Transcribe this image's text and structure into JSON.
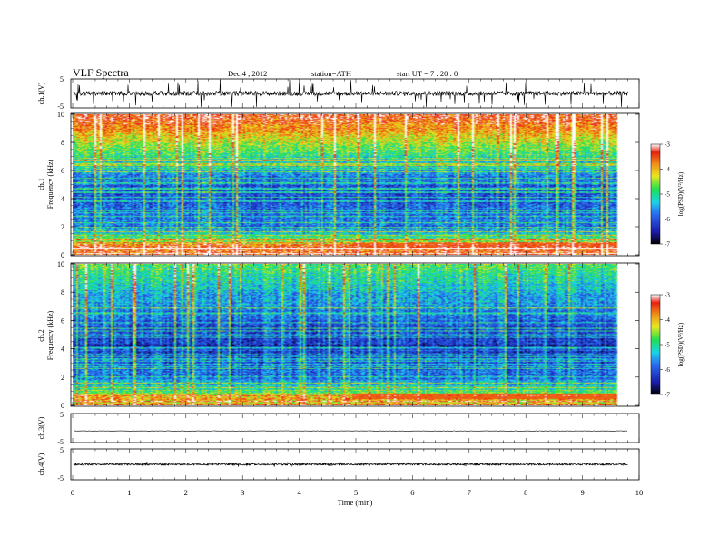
{
  "header": {
    "title": "VLF  Spectra",
    "date": "Dec.4  , 2012",
    "station": "station=ATH",
    "start_ut": "start  UT  =    7  : 20 : 0"
  },
  "colors": {
    "colormap": [
      "#000000",
      "#1a1aa8",
      "#2a6cf0",
      "#18d4e8",
      "#22e050",
      "#e8e820",
      "#f09018",
      "#e82010",
      "#ffffff"
    ],
    "waveform": "#000000",
    "background": "#ffffff"
  },
  "chart_data": [
    {
      "type": "line",
      "panel": "ch1-waveform",
      "ylabel": "ch.1(V)",
      "ytick_labels": [
        "5",
        "-5"
      ],
      "ylim": [
        -5,
        5
      ],
      "xlim": [
        0,
        10
      ],
      "baseline_v": 0,
      "note_values": "noise waveform centered near 0 V"
    },
    {
      "type": "heatmap",
      "panel": "ch1-spectrogram",
      "ylabel_lines": [
        "ch.1",
        "Frequency  (kHz)"
      ],
      "ytick_labels": [
        "0",
        "2",
        "4",
        "6",
        "8",
        "10"
      ],
      "ylim": [
        0,
        10
      ],
      "xlim": [
        0,
        10
      ],
      "data_end_min": 9.8,
      "colorbar": {
        "label": "log(PSD)(V²/Hz)",
        "tick_labels": [
          "-3",
          "-4",
          "-5",
          "-6",
          "-7"
        ],
        "range": [
          -7,
          -3
        ]
      },
      "band_profile": {
        "freq_khz": [
          0,
          0.5,
          1,
          2,
          3,
          4,
          5,
          6,
          7,
          8,
          9,
          10
        ],
        "log_psd": [
          -3.6,
          -3.4,
          -4.8,
          -5.7,
          -5.8,
          -6.1,
          -5.9,
          -5.5,
          -5.0,
          -4.4,
          -3.8,
          -3.4
        ]
      }
    },
    {
      "type": "heatmap",
      "panel": "ch2-spectrogram",
      "ylabel_lines": [
        "ch.2",
        "Frequency  (kHz)"
      ],
      "ytick_labels": [
        "0",
        "2",
        "4",
        "6",
        "8",
        "10"
      ],
      "ylim": [
        0,
        10
      ],
      "xlim": [
        0,
        10
      ],
      "data_end_min": 9.8,
      "colorbar": {
        "label": "log(PSD)(V²/Hz)",
        "tick_labels": [
          "-3",
          "-4",
          "-5",
          "-6",
          "-7"
        ],
        "range": [
          -7,
          -3
        ]
      },
      "band_profile": {
        "freq_khz": [
          0,
          0.5,
          1,
          2,
          3,
          4,
          5,
          6,
          7,
          8,
          9,
          10
        ],
        "log_psd": [
          -4.4,
          -3.8,
          -5.0,
          -5.8,
          -6.0,
          -6.3,
          -6.1,
          -5.9,
          -5.7,
          -5.5,
          -5.1,
          -4.8
        ]
      }
    },
    {
      "type": "line",
      "panel": "ch3-waveform",
      "ylabel": "ch.3(V)",
      "ytick_labels": [
        "5",
        "-5"
      ],
      "ylim": [
        -5,
        5
      ],
      "xlim": [
        0,
        10
      ],
      "baseline_v": -1
    },
    {
      "type": "line",
      "panel": "ch4-waveform",
      "ylabel": "ch.4(V)",
      "ytick_labels": [
        "5",
        "-5"
      ],
      "ylim": [
        -5,
        5
      ],
      "xlim": [
        0,
        10
      ],
      "baseline_v": 0
    }
  ],
  "x_axis": {
    "label": "Time  (min)",
    "tick_labels": [
      "0",
      "1",
      "2",
      "3",
      "4",
      "5",
      "6",
      "7",
      "8",
      "9",
      "10"
    ],
    "range": [
      0,
      10
    ]
  }
}
